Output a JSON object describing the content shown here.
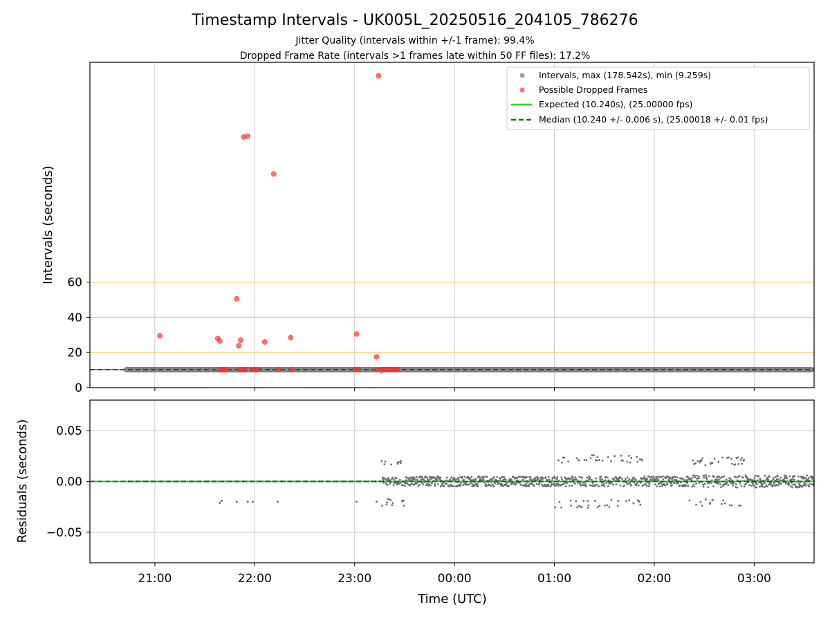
{
  "chart_data": [
    {
      "type": "scatter",
      "title": "Timestamp Intervals - UK005L_20250516_204105_786276",
      "subtitles": [
        "Jitter Quality (intervals within +/-1 frame): 99.4%",
        "Dropped Frame Rate (intervals >1 frames late within 50 FF files): 17.2%"
      ],
      "xlabel": "",
      "ylabel": "Intervals (seconds)",
      "xlim": [
        20.35,
        27.6
      ],
      "ylim": [
        0,
        185
      ],
      "yticks": [
        0,
        20,
        40,
        60
      ],
      "ytick_labels": [
        "0",
        "20",
        "40",
        "60"
      ],
      "grid": true,
      "reference_lines": {
        "values": [
          20,
          40,
          60
        ],
        "color": "#ffcc66"
      },
      "legend_position": "upper right",
      "legend": [
        {
          "label": "Intervals, max (178.542s), min (9.259s)",
          "marker": "circle",
          "color": "#a0a0a0"
        },
        {
          "label": "Possible Dropped Frames",
          "marker": "circle",
          "color": "#ff5555"
        },
        {
          "label": "Expected (10.240s), (25.00000 fps)",
          "marker": "line",
          "color": "#22dd22"
        },
        {
          "label": "Median (10.240 +/- 0.006 s), (25.00018 +/- 0.01 fps)",
          "marker": "dashed",
          "color": "#007700"
        }
      ],
      "series": [
        {
          "name": "Intervals, max (178.542s), min (9.259s)",
          "style": "dense band",
          "x_range": [
            20.69,
            27.6
          ],
          "value": 10.24,
          "extra_points": [
            {
              "x": 23.27,
              "y": 9.26
            }
          ]
        },
        {
          "name": "Possible Dropped Frames",
          "x": [
            21.05,
            21.63,
            21.65,
            21.82,
            21.84,
            21.86,
            21.89,
            21.93,
            22.1,
            22.19,
            22.36,
            23.02,
            23.22,
            23.24,
            21.65,
            21.67,
            21.7,
            21.72,
            21.85,
            21.87,
            21.9,
            21.98,
            22.0,
            22.03,
            22.24,
            22.37,
            23.01,
            23.03,
            23.22,
            23.27,
            23.29,
            23.31,
            23.33,
            23.35,
            23.37,
            23.39,
            23.41,
            23.43
          ],
          "values": [
            29.5,
            28,
            26.5,
            50.5,
            23.8,
            27,
            142.5,
            143,
            26,
            121.5,
            28.5,
            30.5,
            17.5,
            177.3,
            10.3,
            10.3,
            10.3,
            10.3,
            10.3,
            10.3,
            10.3,
            10.3,
            10.3,
            10.3,
            10.3,
            10.3,
            10.3,
            10.3,
            10.3,
            10.3,
            10.3,
            10.3,
            10.3,
            10.3,
            10.3,
            10.3,
            10.3,
            10.3
          ]
        },
        {
          "name": "Expected (10.240s), (25.00000 fps)",
          "value": 10.24
        },
        {
          "name": "Median (10.240 +/- 0.006 s), (25.00018 +/- 0.01 fps)",
          "value": 10.24
        }
      ]
    },
    {
      "type": "scatter",
      "xlabel": "Time (UTC)",
      "ylabel": "Residuals (seconds)",
      "xlim": [
        20.35,
        27.6
      ],
      "ylim": [
        -0.08,
        0.08
      ],
      "yticks": [
        -0.05,
        0.0,
        0.05
      ],
      "ytick_labels": [
        "−0.05",
        "0.00",
        "0.05"
      ],
      "xticks": [
        21,
        22,
        23,
        24,
        25,
        26,
        27
      ],
      "xtick_labels": [
        "21:00",
        "22:00",
        "23:00",
        "00:00",
        "01:00",
        "02:00",
        "03:00"
      ],
      "grid": true,
      "series": [
        {
          "name": "",
          "style": "scatter",
          "segments": [
            {
              "x_range": [
                20.69,
                23.27
              ],
              "spread": 0.0
            },
            {
              "x_range": [
                23.27,
                23.5
              ],
              "spread": 0.004,
              "outliers": 0.02
            },
            {
              "x_range": [
                23.5,
                25.0
              ],
              "spread": 0.005
            },
            {
              "x_range": [
                25.0,
                25.9
              ],
              "spread": 0.005,
              "outliers": 0.022
            },
            {
              "x_range": [
                25.9,
                26.35
              ],
              "spread": 0.005
            },
            {
              "x_range": [
                26.35,
                26.9
              ],
              "spread": 0.006,
              "outliers": 0.02
            },
            {
              "x_range": [
                26.9,
                27.6
              ],
              "spread": 0.006
            }
          ],
          "sparse_outliers": {
            "x": [
              21.65,
              21.67,
              21.82,
              21.93,
              21.98,
              22.23,
              23.02,
              23.22
            ],
            "values": [
              -0.021,
              -0.019,
              -0.02,
              -0.02,
              -0.02,
              -0.02,
              -0.02,
              -0.02
            ]
          }
        },
        {
          "name": "Expected",
          "value": 0.0,
          "color": "#22dd22"
        },
        {
          "name": "Median",
          "value": 0.0,
          "color": "#007700"
        }
      ]
    }
  ]
}
